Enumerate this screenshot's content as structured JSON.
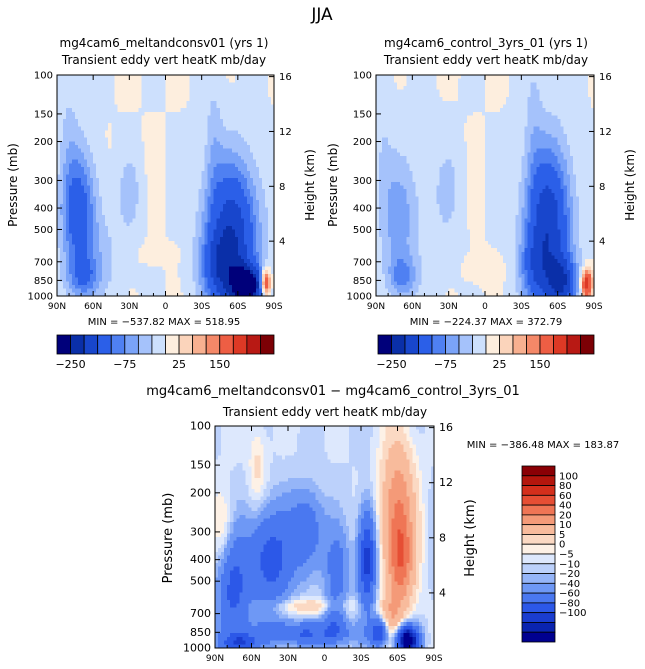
{
  "season": "JJA",
  "colors": {
    "plot_bg": "#fbe6d6",
    "ramp_250": [
      "#00007a",
      "#0a2fa8",
      "#1846cc",
      "#2b5fe8",
      "#4f80f2",
      "#7aa3f8",
      "#a5c2fb",
      "#cde0fd",
      "#fdeede",
      "#fbd4bb",
      "#f8b090",
      "#f48868",
      "#ee5e44",
      "#dd3925",
      "#b81914",
      "#7c0005"
    ],
    "ramp_diff": [
      "#000090",
      "#0a24b0",
      "#1a3dd0",
      "#2c58e8",
      "#4a78f0",
      "#6e98f5",
      "#95b5f8",
      "#bcd1fb",
      "#dde8fd",
      "#fdf1e6",
      "#fbd9c3",
      "#f8bb9c",
      "#f49a78",
      "#ef7555",
      "#e64e34",
      "#d42f1c",
      "#b4160d",
      "#8a0005"
    ]
  },
  "chart_data": [
    {
      "type": "heatmap",
      "name": "top-left",
      "title": "mg4cam6_meltandconsv01 (yrs 1)",
      "subtitle": "Transient eddy vert heatK mb/day",
      "ylabel": "Pressure (mb)",
      "ylabel_right": "Height (km)",
      "x_ticks": [
        "90N",
        "60N",
        "30N",
        "0",
        "30S",
        "60S",
        "90S"
      ],
      "y_ticks": [
        "100",
        "150",
        "200",
        "300",
        "400",
        "500",
        "700",
        "850",
        "1000"
      ],
      "y_ticks_right": [
        "16",
        "12",
        "8",
        "4"
      ],
      "xlim": [
        90,
        -90
      ],
      "ylim": [
        1000,
        100
      ],
      "stats": "MIN = −537.82   MAX = 518.95",
      "colorbar": {
        "tick_labels": [
          "−250",
          "−75",
          "25",
          "150"
        ]
      },
      "features": [
        {
          "lat": 72,
          "p": 420,
          "sx": 10,
          "sl": 0.45,
          "a": -120
        },
        {
          "lat": 68,
          "p": 820,
          "sx": 9,
          "sl": 0.15,
          "a": -70
        },
        {
          "lat": 30,
          "p": 340,
          "sx": 6,
          "sl": 0.25,
          "a": -45
        },
        {
          "lat": 55,
          "p": 650,
          "sx": 14,
          "sl": 0.35,
          "a": -30
        },
        {
          "lat": -55,
          "p": 550,
          "sx": 15,
          "sl": 0.55,
          "a": -190
        },
        {
          "lat": -68,
          "p": 900,
          "sx": 9,
          "sl": 0.14,
          "a": -260
        },
        {
          "lat": -45,
          "p": 750,
          "sx": 10,
          "sl": 0.25,
          "a": -90
        },
        {
          "lat": 5,
          "p": 640,
          "sx": 12,
          "sl": 0.07,
          "a": 10
        },
        {
          "lat": -83,
          "p": 870,
          "sx": 3,
          "sl": 0.1,
          "a": 200
        },
        {
          "lat": -40,
          "p": 200,
          "sx": 5,
          "sl": 0.55,
          "a": -30
        },
        {
          "lat": 80,
          "p": 200,
          "sx": 6,
          "sl": 0.6,
          "a": -25
        }
      ]
    },
    {
      "type": "heatmap",
      "name": "top-right",
      "title": "mg4cam6_control_3yrs_01 (yrs 1)",
      "subtitle": "Transient eddy vert heatK mb/day",
      "ylabel": "Pressure (mb)",
      "ylabel_right": "Height (km)",
      "x_ticks": [
        "90N",
        "60N",
        "30N",
        "0",
        "30S",
        "60S",
        "90S"
      ],
      "y_ticks": [
        "100",
        "150",
        "200",
        "300",
        "400",
        "500",
        "700",
        "850",
        "1000"
      ],
      "y_ticks_right": [
        "16",
        "12",
        "8",
        "4"
      ],
      "xlim": [
        90,
        -90
      ],
      "ylim": [
        1000,
        100
      ],
      "stats": "MIN = −224.37   MAX = 372.79",
      "colorbar": {
        "tick_labels": [
          "−250",
          "−75",
          "25",
          "150"
        ]
      },
      "features": [
        {
          "lat": 72,
          "p": 450,
          "sx": 10,
          "sl": 0.45,
          "a": -60
        },
        {
          "lat": 68,
          "p": 820,
          "sx": 8,
          "sl": 0.15,
          "a": -70
        },
        {
          "lat": 30,
          "p": 330,
          "sx": 7,
          "sl": 0.3,
          "a": -30
        },
        {
          "lat": -52,
          "p": 500,
          "sx": 13,
          "sl": 0.6,
          "a": -190
        },
        {
          "lat": -63,
          "p": 870,
          "sx": 8,
          "sl": 0.18,
          "a": -150
        },
        {
          "lat": -40,
          "p": 750,
          "sx": 8,
          "sl": 0.25,
          "a": -60
        },
        {
          "lat": 0,
          "p": 760,
          "sx": 10,
          "sl": 0.1,
          "a": 15
        },
        {
          "lat": -84,
          "p": 880,
          "sx": 3,
          "sl": 0.1,
          "a": 200
        },
        {
          "lat": -40,
          "p": 160,
          "sx": 5,
          "sl": 0.6,
          "a": -25
        },
        {
          "lat": 85,
          "p": 200,
          "sx": 6,
          "sl": 0.6,
          "a": -20
        },
        {
          "lat": 50,
          "p": 450,
          "sx": 15,
          "sl": 0.6,
          "a": -15
        }
      ]
    },
    {
      "type": "heatmap",
      "name": "bottom-difference",
      "title": "mg4cam6_meltandconsv01 − mg4cam6_control_3yrs_01",
      "subtitle": "Transient eddy vert heatK mb/day",
      "ylabel": "Pressure (mb)",
      "ylabel_right": "Height (km)",
      "x_ticks": [
        "90N",
        "60N",
        "30N",
        "0",
        "30S",
        "60S",
        "90S"
      ],
      "y_ticks": [
        "100",
        "150",
        "200",
        "300",
        "400",
        "500",
        "700",
        "850",
        "1000"
      ],
      "y_ticks_right": [
        "16",
        "12",
        "8",
        "4"
      ],
      "xlim": [
        90,
        -90
      ],
      "ylim": [
        1000,
        100
      ],
      "stats": "MIN = −386.48   MAX = 183.87",
      "colorbar": {
        "tick_labels": [
          "100",
          "80",
          "60",
          "40",
          "20",
          "10",
          "5",
          "0",
          "−5",
          "−10",
          "−20",
          "−40",
          "−60",
          "−80",
          "−100"
        ]
      },
      "features": [
        {
          "lat": -60,
          "p": 250,
          "sx": 9,
          "sl": 0.5,
          "a": 60
        },
        {
          "lat": -63,
          "p": 420,
          "sx": 7,
          "sl": 0.3,
          "a": 50
        },
        {
          "lat": -55,
          "p": 720,
          "sx": 6,
          "sl": 0.18,
          "a": 30
        },
        {
          "lat": -68,
          "p": 920,
          "sx": 6,
          "sl": 0.1,
          "a": -130
        },
        {
          "lat": -45,
          "p": 850,
          "sx": 5,
          "sl": 0.1,
          "a": -60
        },
        {
          "lat": -35,
          "p": 400,
          "sx": 5,
          "sl": 0.35,
          "a": -70
        },
        {
          "lat": 45,
          "p": 400,
          "sx": 12,
          "sl": 0.35,
          "a": -50
        },
        {
          "lat": 15,
          "p": 300,
          "sx": 10,
          "sl": 0.3,
          "a": -35
        },
        {
          "lat": -10,
          "p": 450,
          "sx": 7,
          "sl": 0.3,
          "a": -25
        },
        {
          "lat": 75,
          "p": 550,
          "sx": 9,
          "sl": 0.4,
          "a": -45
        },
        {
          "lat": 10,
          "p": 650,
          "sx": 25,
          "sl": 0.06,
          "a": 18
        },
        {
          "lat": 20,
          "p": 860,
          "sx": 30,
          "sl": 0.08,
          "a": -40
        },
        {
          "lat": 70,
          "p": 950,
          "sx": 10,
          "sl": 0.06,
          "a": -50
        },
        {
          "lat": 82,
          "p": 300,
          "sx": 6,
          "sl": 0.3,
          "a": 15
        },
        {
          "lat": 55,
          "p": 150,
          "sx": 5,
          "sl": 0.3,
          "a": 12
        },
        {
          "lat": -8,
          "p": 750,
          "sx": 6,
          "sl": 0.15,
          "a": -30
        }
      ]
    }
  ]
}
